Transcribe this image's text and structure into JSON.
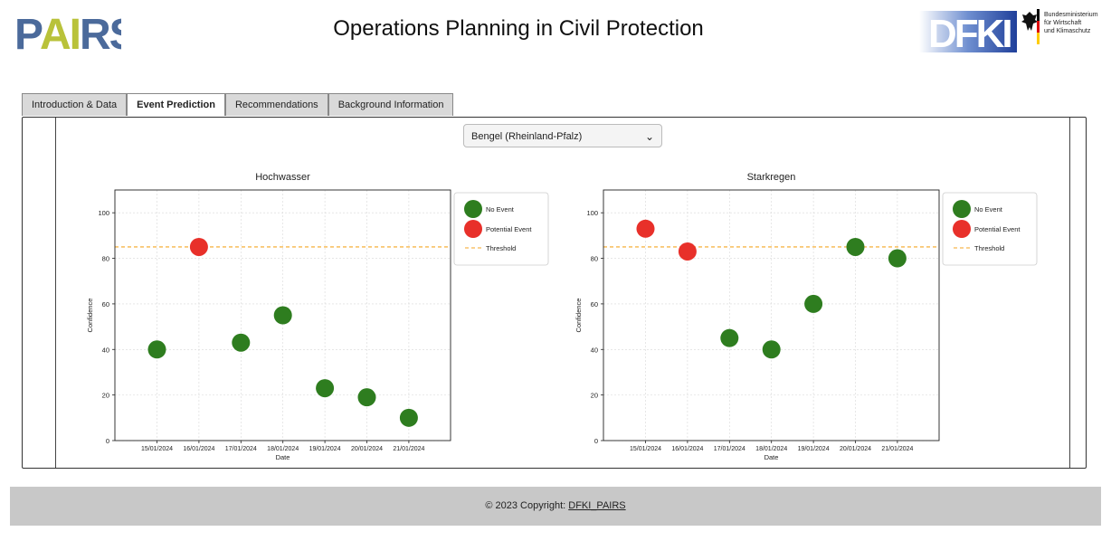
{
  "header": {
    "title": "Operations Planning in Civil Protection",
    "logo_left": "PAIRS",
    "logo_dfki": "DFKI",
    "ministry_lines": [
      "Bundesministerium",
      "für Wirtschaft",
      "und Klimaschutz"
    ]
  },
  "tabs": [
    {
      "label": "Introduction & Data",
      "active": false
    },
    {
      "label": "Event Prediction",
      "active": true
    },
    {
      "label": "Recommendations",
      "active": false
    },
    {
      "label": "Background Information",
      "active": false
    }
  ],
  "location": {
    "selected": "Bengel (Rheinland-Pfalz)"
  },
  "colors": {
    "no_event": "#2e7d1f",
    "potential_event": "#e8302a",
    "threshold": "#f5a623"
  },
  "legend": {
    "no_event": "No Event",
    "potential_event": "Potential Event",
    "threshold": "Threshold"
  },
  "chart_data": [
    {
      "type": "scatter",
      "title": "Hochwasser",
      "xlabel": "Date",
      "ylabel": "Confidence",
      "ylim": [
        0,
        110
      ],
      "yticks": [
        0,
        20,
        40,
        60,
        80,
        100
      ],
      "x": [
        "15/01/2024",
        "16/01/2024",
        "17/01/2024",
        "18/01/2024",
        "19/01/2024",
        "20/01/2024",
        "21/01/2024"
      ],
      "values": [
        40,
        85,
        43,
        55,
        23,
        19,
        10
      ],
      "status": [
        "No Event",
        "Potential Event",
        "No Event",
        "No Event",
        "No Event",
        "No Event",
        "No Event"
      ],
      "threshold": 85,
      "grid": true,
      "legend_position": "outside-right-top"
    },
    {
      "type": "scatter",
      "title": "Starkregen",
      "xlabel": "Date",
      "ylabel": "Confidence",
      "ylim": [
        0,
        110
      ],
      "yticks": [
        0,
        20,
        40,
        60,
        80,
        100
      ],
      "x": [
        "15/01/2024",
        "16/01/2024",
        "17/01/2024",
        "18/01/2024",
        "19/01/2024",
        "20/01/2024",
        "21/01/2024"
      ],
      "values": [
        93,
        83,
        45,
        40,
        60,
        85,
        80
      ],
      "status": [
        "Potential Event",
        "Potential Event",
        "No Event",
        "No Event",
        "No Event",
        "No Event",
        "No Event"
      ],
      "threshold": 85,
      "grid": true,
      "legend_position": "outside-right-top"
    }
  ],
  "footer": {
    "text": "© 2023 Copyright: ",
    "link": "DFKI_PAIRS"
  }
}
